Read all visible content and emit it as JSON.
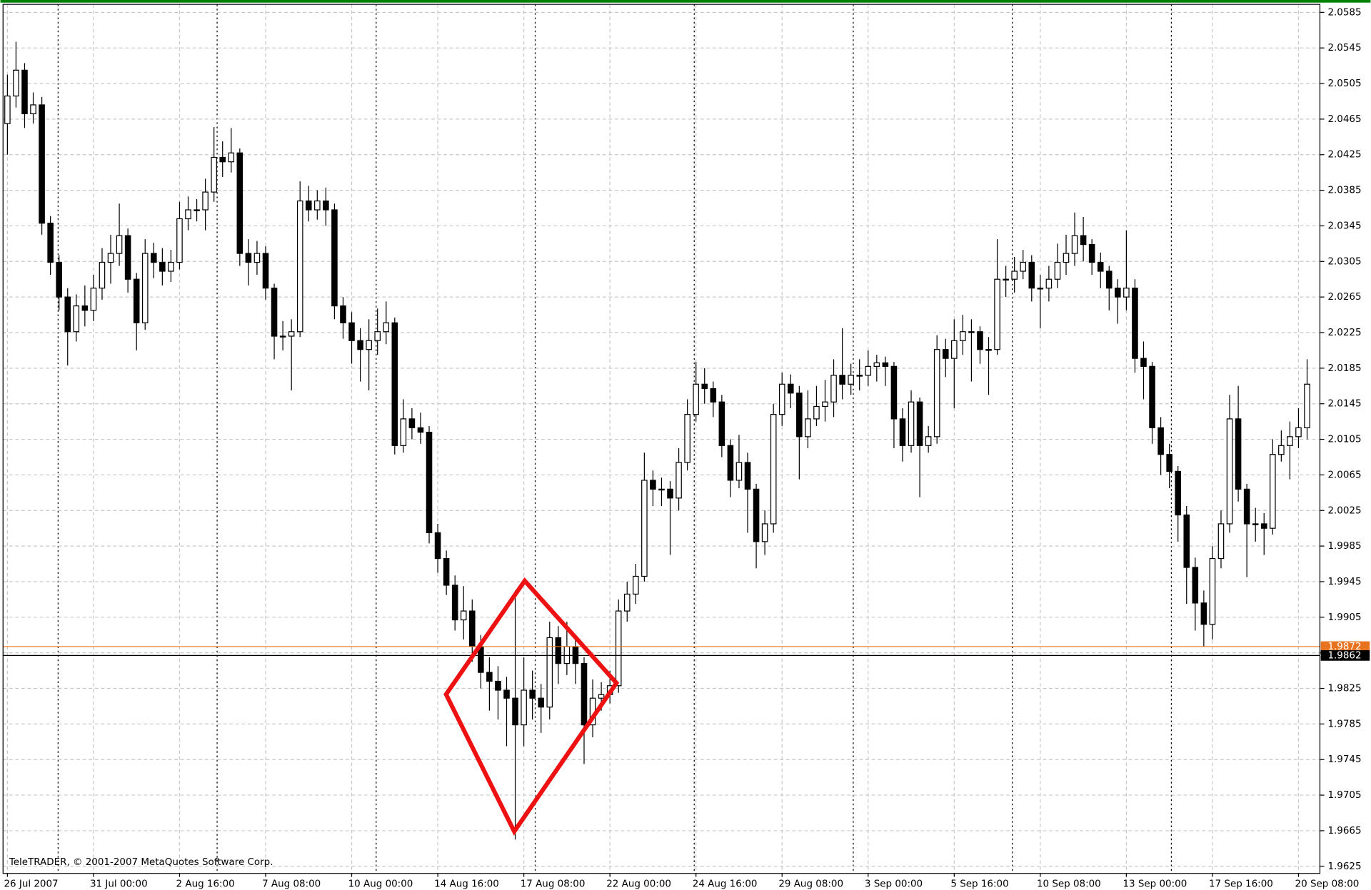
{
  "chart_data": {
    "type": "candlestick",
    "copyright": "TeleTRADER, © 2001-2007 MetaQuotes Software Corp.",
    "categories": [
      "26 Jul 2007",
      null,
      null,
      null,
      null,
      null,
      null,
      null,
      null,
      null,
      "31 Jul 00:00",
      null,
      null,
      null,
      null,
      null,
      null,
      null,
      null,
      null,
      "2 Aug 16:00",
      null,
      null,
      null,
      null,
      null,
      null,
      null,
      null,
      null,
      "7 Aug 08:00",
      null,
      null,
      null,
      null,
      null,
      null,
      null,
      null,
      null,
      "10 Aug 00:00",
      null,
      null,
      null,
      null,
      null,
      null,
      null,
      null,
      null,
      "14 Aug 16:00",
      null,
      null,
      null,
      null,
      null,
      null,
      null,
      null,
      null,
      "17 Aug 08:00",
      null,
      null,
      null,
      null,
      null,
      null,
      null,
      null,
      null,
      "22 Aug 00:00",
      null,
      null,
      null,
      null,
      null,
      null,
      null,
      null,
      null,
      "24 Aug 16:00",
      null,
      null,
      null,
      null,
      null,
      null,
      null,
      null,
      null,
      "29 Aug 08:00",
      null,
      null,
      null,
      null,
      null,
      null,
      null,
      null,
      null,
      "3 Sep 00:00",
      null,
      null,
      null,
      null,
      null,
      null,
      null,
      null,
      null,
      "5 Sep 16:00",
      null,
      null,
      null,
      null,
      null,
      null,
      null,
      null,
      null,
      "10 Sep 08:00",
      null,
      null,
      null,
      null,
      null,
      null,
      null,
      null,
      null,
      "13 Sep 00:00",
      null,
      null,
      null,
      null,
      null,
      null,
      null,
      null,
      null,
      "17 Sep 16:00",
      null,
      null,
      null,
      null,
      null,
      null,
      null,
      null,
      null,
      "20 Sep 08:00",
      null
    ],
    "open": [
      2.046,
      2.0491,
      2.052,
      2.0471,
      2.0481,
      2.0348,
      2.0304,
      2.0265,
      2.0226,
      2.0255,
      2.025,
      2.0275,
      2.0304,
      2.0314,
      2.0334,
      2.0285,
      2.0236,
      2.0314,
      2.0304,
      2.0294,
      2.0304,
      2.0353,
      2.0363,
      2.0363,
      2.0383,
      2.0422,
      2.0417,
      2.0427,
      2.0314,
      2.0304,
      2.0314,
      2.0275,
      2.0221,
      2.0221,
      2.0226,
      2.0373,
      2.0363,
      2.0373,
      2.0363,
      2.0255,
      2.0236,
      2.0216,
      2.0206,
      2.0216,
      2.0226,
      2.0236,
      2.0098,
      2.0128,
      2.0118,
      2.0113,
      2.0,
      1.9971,
      1.9941,
      1.9902,
      1.9912,
      1.9872,
      1.9843,
      1.9833,
      1.9823,
      1.9814,
      1.9784,
      1.9823,
      1.9814,
      1.9804,
      1.9882,
      1.9853,
      1.9872,
      1.9853,
      1.9784,
      1.9814,
      1.9818,
      1.9828,
      1.9912,
      1.9931,
      1.9951,
      2.0059,
      2.0049,
      2.0049,
      2.0039,
      2.0079,
      2.0133,
      2.0167,
      2.0162,
      2.0147,
      2.0098,
      2.0059,
      2.0079,
      2.0049,
      1.999,
      2.001,
      2.0133,
      2.0167,
      2.0157,
      2.0108,
      2.0128,
      2.0142,
      2.0147,
      2.0177,
      2.0167,
      2.0177,
      2.0177,
      2.0187,
      2.0191,
      2.0187,
      2.0128,
      2.0098,
      2.0147,
      2.0098,
      2.0108,
      2.0206,
      2.0196,
      2.0216,
      2.0226,
      2.0226,
      2.0206,
      2.0206,
      2.0285,
      2.0285,
      2.0294,
      2.0304,
      2.0275,
      2.0275,
      2.0285,
      2.0304,
      2.0314,
      2.0334,
      2.0324,
      2.0304,
      2.0294,
      2.0275,
      2.0265,
      2.0275,
      2.0196,
      2.0187,
      2.0118,
      2.0088,
      2.0069,
      2.002,
      1.9961,
      1.9921,
      1.9897,
      1.9971,
      2.001,
      2.0128,
      2.0049,
      2.001,
      2.001,
      2.0005,
      2.0088,
      2.0098,
      2.0108,
      2.0118
    ],
    "high": [
      2.0515,
      2.0552,
      2.0528,
      2.0495,
      2.049,
      2.0356,
      2.0312,
      2.0275,
      2.0268,
      2.0278,
      2.029,
      2.032,
      2.0335,
      2.037,
      2.0342,
      2.0292,
      2.033,
      2.0326,
      2.032,
      2.0318,
      2.0372,
      2.0378,
      2.0375,
      2.0398,
      2.0456,
      2.044,
      2.0455,
      2.0432,
      2.033,
      2.0328,
      2.0322,
      2.028,
      2.0238,
      2.024,
      2.0395,
      2.039,
      2.0385,
      2.0388,
      2.037,
      2.0265,
      2.0248,
      2.023,
      2.024,
      2.0252,
      2.026,
      2.0242,
      2.015,
      2.014,
      2.0135,
      2.012,
      2.001,
      1.998,
      1.9952,
      1.994,
      1.9925,
      1.9885,
      1.986,
      1.985,
      1.9838,
      1.9935,
      1.986,
      1.9845,
      1.983,
      1.99,
      1.9895,
      1.99,
      1.9885,
      1.986,
      1.9835,
      1.9832,
      1.9845,
      1.9925,
      1.9945,
      1.9965,
      2.009,
      2.007,
      2.0062,
      2.0058,
      2.0095,
      2.015,
      2.0192,
      2.0185,
      2.017,
      2.0155,
      2.0105,
      2.011,
      2.009,
      2.0055,
      2.0025,
      2.0145,
      2.018,
      2.0178,
      2.0165,
      2.016,
      2.0165,
      2.0172,
      2.0195,
      2.023,
      2.019,
      2.0195,
      2.0205,
      2.02,
      2.0198,
      2.0192,
      2.014,
      2.016,
      2.0152,
      2.012,
      2.0222,
      2.0218,
      2.024,
      2.0245,
      2.024,
      2.0232,
      2.022,
      2.033,
      2.03,
      2.031,
      2.0318,
      2.0312,
      2.029,
      2.03,
      2.0325,
      2.0335,
      2.036,
      2.0355,
      2.033,
      2.0315,
      2.03,
      2.0285,
      2.034,
      2.0285,
      2.0215,
      2.0192,
      2.013,
      2.01,
      2.0075,
      2.003,
      1.9972,
      1.9935,
      1.9985,
      2.0025,
      2.0155,
      2.0165,
      2.0055,
      2.0028,
      2.0022,
      2.0105,
      2.0115,
      2.0125,
      2.014,
      2.0195
    ],
    "low": [
      2.0425,
      2.0478,
      2.0455,
      2.046,
      2.0335,
      2.029,
      2.025,
      2.0188,
      2.0215,
      2.0232,
      2.0238,
      2.0262,
      2.028,
      2.03,
      2.027,
      2.0205,
      2.0228,
      2.0286,
      2.0278,
      2.0282,
      2.0296,
      2.034,
      2.035,
      2.034,
      2.0372,
      2.04,
      2.0405,
      2.03,
      2.0278,
      2.029,
      2.0262,
      2.0195,
      2.0205,
      2.016,
      2.022,
      2.035,
      2.0352,
      2.0345,
      2.024,
      2.0218,
      2.019,
      2.017,
      2.016,
      2.02,
      2.0212,
      2.0088,
      2.009,
      2.0105,
      2.01,
      1.9988,
      1.9955,
      1.993,
      1.989,
      1.988,
      1.9855,
      1.9825,
      1.98,
      1.979,
      1.976,
      1.9655,
      1.976,
      1.979,
      1.9775,
      1.979,
      1.983,
      1.984,
      1.983,
      1.974,
      1.977,
      1.98,
      1.9808,
      1.982,
      1.99,
      1.992,
      1.9945,
      2.003,
      2.003,
      1.9975,
      2.0025,
      2.007,
      2.0125,
      2.0145,
      2.013,
      2.0085,
      2.004,
      2.005,
      2.0,
      1.996,
      1.9975,
      2.0,
      2.012,
      2.014,
      2.006,
      2.0095,
      2.012,
      2.0125,
      2.013,
      2.015,
      2.0155,
      2.016,
      2.0165,
      2.017,
      2.0165,
      2.0095,
      2.008,
      2.009,
      2.004,
      2.009,
      2.01,
      2.0175,
      2.014,
      2.02,
      2.017,
      2.019,
      2.0155,
      2.02,
      2.0265,
      2.027,
      2.0285,
      2.026,
      2.023,
      2.026,
      2.0275,
      2.029,
      2.03,
      2.0305,
      2.029,
      2.0275,
      2.025,
      2.0235,
      2.025,
      2.018,
      2.015,
      2.01,
      2.0065,
      2.005,
      1.999,
      1.992,
      1.989,
      1.9872,
      1.988,
      1.996,
      2.0,
      2.0035,
      1.995,
      1.999,
      1.9975,
      1.9998,
      2.008,
      2.006,
      2.0095,
      2.0105
    ],
    "close": [
      2.0491,
      2.052,
      2.0471,
      2.0481,
      2.0348,
      2.0304,
      2.0265,
      2.0226,
      2.0255,
      2.025,
      2.0275,
      2.0304,
      2.0314,
      2.0334,
      2.0285,
      2.0236,
      2.0314,
      2.0304,
      2.0294,
      2.0304,
      2.0353,
      2.0363,
      2.0363,
      2.0383,
      2.0422,
      2.0417,
      2.0427,
      2.0314,
      2.0304,
      2.0314,
      2.0275,
      2.0221,
      2.0221,
      2.0226,
      2.0373,
      2.0363,
      2.0373,
      2.0363,
      2.0255,
      2.0236,
      2.0216,
      2.0206,
      2.0216,
      2.0226,
      2.0236,
      2.0098,
      2.0128,
      2.0118,
      2.0113,
      2.0,
      1.9971,
      1.9941,
      1.9902,
      1.9912,
      1.9872,
      1.9843,
      1.9833,
      1.9823,
      1.9814,
      1.9784,
      1.9823,
      1.9814,
      1.9804,
      1.9882,
      1.9853,
      1.9872,
      1.9853,
      1.9784,
      1.9814,
      1.9818,
      1.9828,
      1.9912,
      1.9931,
      1.9951,
      2.0059,
      2.0049,
      2.0049,
      2.0039,
      2.0079,
      2.0133,
      2.0167,
      2.0162,
      2.0147,
      2.0098,
      2.0059,
      2.0079,
      2.0049,
      1.999,
      2.001,
      2.0133,
      2.0167,
      2.0157,
      2.0108,
      2.0128,
      2.0142,
      2.0147,
      2.0177,
      2.0167,
      2.0177,
      2.0177,
      2.0187,
      2.0191,
      2.0187,
      2.0128,
      2.0098,
      2.0147,
      2.0098,
      2.0108,
      2.0206,
      2.0196,
      2.0216,
      2.0226,
      2.0226,
      2.0206,
      2.0206,
      2.0285,
      2.0285,
      2.0294,
      2.0304,
      2.0275,
      2.0275,
      2.0285,
      2.0304,
      2.0314,
      2.0334,
      2.0324,
      2.0304,
      2.0294,
      2.0275,
      2.0265,
      2.0275,
      2.0196,
      2.0187,
      2.0118,
      2.0088,
      2.0069,
      2.002,
      1.9961,
      1.9921,
      1.9897,
      1.9971,
      2.001,
      2.0128,
      2.0049,
      2.001,
      2.001,
      2.0005,
      2.0088,
      2.0098,
      2.0108,
      2.0118,
      2.0167
    ],
    "up_color": "#ffffff",
    "down_color": "#000000",
    "wick_color": "#000000",
    "ylim": [
      1.9617,
      2.0594
    ],
    "yticks": [
      1.9625,
      1.9665,
      1.9705,
      1.9745,
      1.9785,
      1.9825,
      1.9865,
      1.9905,
      1.9945,
      1.9985,
      2.0025,
      2.0065,
      2.0105,
      2.0145,
      2.0185,
      2.0225,
      2.0265,
      2.0305,
      2.0345,
      2.0385,
      2.0425,
      2.0465,
      2.0505,
      2.0545,
      2.0585
    ],
    "grid": true,
    "price_lines": [
      {
        "value": 1.9872,
        "color": "#e8731f"
      },
      {
        "value": 1.9862,
        "color": "#000000"
      }
    ]
  }
}
